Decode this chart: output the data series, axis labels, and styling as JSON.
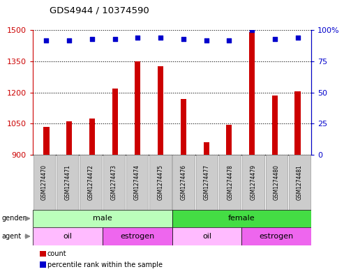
{
  "title": "GDS4944 / 10374590",
  "samples": [
    "GSM1274470",
    "GSM1274471",
    "GSM1274472",
    "GSM1274473",
    "GSM1274474",
    "GSM1274475",
    "GSM1274476",
    "GSM1274477",
    "GSM1274478",
    "GSM1274479",
    "GSM1274480",
    "GSM1274481"
  ],
  "counts": [
    1035,
    1060,
    1075,
    1220,
    1350,
    1325,
    1170,
    960,
    1045,
    1490,
    1185,
    1205
  ],
  "percentile_ranks": [
    92,
    92,
    93,
    93,
    94,
    94,
    93,
    92,
    92,
    100,
    93,
    94
  ],
  "ylim_left": [
    900,
    1500
  ],
  "ylim_right": [
    0,
    100
  ],
  "yticks_left": [
    900,
    1050,
    1200,
    1350,
    1500
  ],
  "yticks_right": [
    0,
    25,
    50,
    75,
    100
  ],
  "bar_color": "#cc0000",
  "dot_color": "#0000cc",
  "gender": [
    {
      "label": "male",
      "start": 0,
      "end": 6,
      "color": "#bbffbb"
    },
    {
      "label": "female",
      "start": 6,
      "end": 12,
      "color": "#44dd44"
    }
  ],
  "agent": [
    {
      "label": "oil",
      "start": 0,
      "end": 3,
      "color": "#ffbbff"
    },
    {
      "label": "estrogen",
      "start": 3,
      "end": 6,
      "color": "#ee66ee"
    },
    {
      "label": "oil",
      "start": 6,
      "end": 9,
      "color": "#ffbbff"
    },
    {
      "label": "estrogen",
      "start": 9,
      "end": 12,
      "color": "#ee66ee"
    }
  ],
  "legend_count_label": "count",
  "legend_pct_label": "percentile rank within the sample",
  "bg_color": "#ffffff",
  "tick_label_area_color": "#cccccc",
  "grid_color": "#000000"
}
